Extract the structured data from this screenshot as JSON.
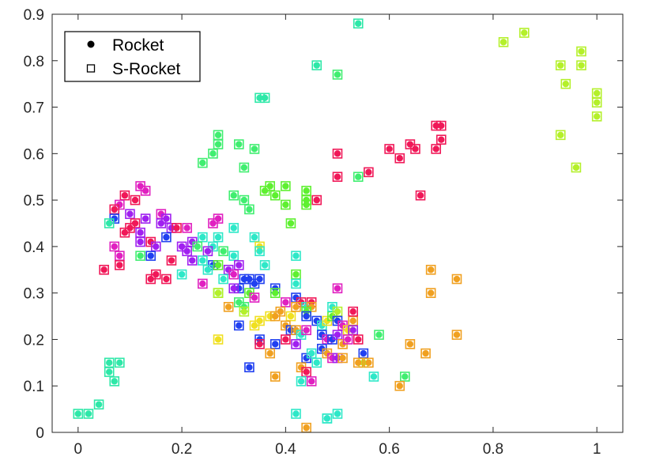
{
  "chart_data": {
    "type": "scatter",
    "title": "",
    "xlabel": "",
    "ylabel": "",
    "xlim": [
      -0.05,
      1.05
    ],
    "ylim": [
      0,
      0.9
    ],
    "xticks": [
      0,
      0.2,
      0.4,
      0.6,
      0.8,
      1
    ],
    "xtick_labels": [
      "0",
      "0.2",
      "0.4",
      "0.6",
      "0.8",
      "1"
    ],
    "yticks": [
      0,
      0.1,
      0.2,
      0.3,
      0.4,
      0.5,
      0.6,
      0.7,
      0.8,
      0.9
    ],
    "ytick_labels": [
      "0",
      "0.1",
      "0.2",
      "0.3",
      "0.4",
      "0.5",
      "0.6",
      "0.7",
      "0.8",
      "0.9"
    ],
    "grid": false,
    "legend": {
      "placement": "top-left",
      "entries": [
        {
          "label": "Rocket",
          "marker": "filled-circle"
        },
        {
          "label": "S-Rocket",
          "marker": "open-square"
        }
      ]
    },
    "encoding": "Each point is drawn twice: a filled circle for Rocket and an open square for S-Rocket, colored per item.",
    "points": [
      {
        "x": 0.86,
        "y": 0.86,
        "c": "#b4f02a"
      },
      {
        "x": 0.82,
        "y": 0.84,
        "c": "#b4f02a"
      },
      {
        "x": 0.97,
        "y": 0.82,
        "c": "#b4f02a"
      },
      {
        "x": 0.93,
        "y": 0.79,
        "c": "#b4f02a"
      },
      {
        "x": 0.97,
        "y": 0.79,
        "c": "#b4f02a"
      },
      {
        "x": 0.94,
        "y": 0.75,
        "c": "#b4f02a"
      },
      {
        "x": 1.0,
        "y": 0.73,
        "c": "#b4f02a"
      },
      {
        "x": 1.0,
        "y": 0.71,
        "c": "#b4f02a"
      },
      {
        "x": 1.0,
        "y": 0.68,
        "c": "#b4f02a"
      },
      {
        "x": 0.93,
        "y": 0.64,
        "c": "#b4f02a"
      },
      {
        "x": 0.96,
        "y": 0.57,
        "c": "#b4f02a"
      },
      {
        "x": 0.54,
        "y": 0.88,
        "c": "#2ee8a8"
      },
      {
        "x": 0.46,
        "y": 0.79,
        "c": "#2ee8a8"
      },
      {
        "x": 0.5,
        "y": 0.77,
        "c": "#40ee70"
      },
      {
        "x": 0.36,
        "y": 0.72,
        "c": "#2ee8a8"
      },
      {
        "x": 0.35,
        "y": 0.72,
        "c": "#2ee8a8"
      },
      {
        "x": 0.69,
        "y": 0.66,
        "c": "#f01858"
      },
      {
        "x": 0.7,
        "y": 0.66,
        "c": "#f01858"
      },
      {
        "x": 0.7,
        "y": 0.63,
        "c": "#f01858"
      },
      {
        "x": 0.64,
        "y": 0.62,
        "c": "#f01858"
      },
      {
        "x": 0.65,
        "y": 0.61,
        "c": "#f01858"
      },
      {
        "x": 0.69,
        "y": 0.61,
        "c": "#f01858"
      },
      {
        "x": 0.6,
        "y": 0.61,
        "c": "#f01858"
      },
      {
        "x": 0.62,
        "y": 0.59,
        "c": "#f01858"
      },
      {
        "x": 0.5,
        "y": 0.6,
        "c": "#f01858"
      },
      {
        "x": 0.5,
        "y": 0.55,
        "c": "#f01858"
      },
      {
        "x": 0.56,
        "y": 0.56,
        "c": "#f01858"
      },
      {
        "x": 0.66,
        "y": 0.51,
        "c": "#f01858"
      },
      {
        "x": 0.46,
        "y": 0.5,
        "c": "#f01858"
      },
      {
        "x": 0.27,
        "y": 0.64,
        "c": "#40ee70"
      },
      {
        "x": 0.27,
        "y": 0.62,
        "c": "#40ee70"
      },
      {
        "x": 0.31,
        "y": 0.62,
        "c": "#40ee70"
      },
      {
        "x": 0.34,
        "y": 0.61,
        "c": "#40ee70"
      },
      {
        "x": 0.26,
        "y": 0.6,
        "c": "#40ee70"
      },
      {
        "x": 0.24,
        "y": 0.58,
        "c": "#40ee70"
      },
      {
        "x": 0.32,
        "y": 0.57,
        "c": "#40ee70"
      },
      {
        "x": 0.54,
        "y": 0.55,
        "c": "#40ee70"
      },
      {
        "x": 0.37,
        "y": 0.53,
        "c": "#5ef030"
      },
      {
        "x": 0.36,
        "y": 0.52,
        "c": "#5ef030"
      },
      {
        "x": 0.4,
        "y": 0.53,
        "c": "#5ef030"
      },
      {
        "x": 0.44,
        "y": 0.52,
        "c": "#5ef030"
      },
      {
        "x": 0.3,
        "y": 0.51,
        "c": "#40ee70"
      },
      {
        "x": 0.32,
        "y": 0.5,
        "c": "#40ee70"
      },
      {
        "x": 0.38,
        "y": 0.51,
        "c": "#5ef030"
      },
      {
        "x": 0.4,
        "y": 0.49,
        "c": "#5ef030"
      },
      {
        "x": 0.44,
        "y": 0.5,
        "c": "#5ef030"
      },
      {
        "x": 0.44,
        "y": 0.49,
        "c": "#5ef030"
      },
      {
        "x": 0.33,
        "y": 0.48,
        "c": "#40ee70"
      },
      {
        "x": 0.41,
        "y": 0.45,
        "c": "#5ef030"
      },
      {
        "x": 0.09,
        "y": 0.51,
        "c": "#f01858"
      },
      {
        "x": 0.12,
        "y": 0.53,
        "c": "#e020c0"
      },
      {
        "x": 0.13,
        "y": 0.52,
        "c": "#e020c0"
      },
      {
        "x": 0.11,
        "y": 0.5,
        "c": "#f01858"
      },
      {
        "x": 0.08,
        "y": 0.49,
        "c": "#e020c0"
      },
      {
        "x": 0.07,
        "y": 0.48,
        "c": "#f01858"
      },
      {
        "x": 0.1,
        "y": 0.47,
        "c": "#a020f0"
      },
      {
        "x": 0.13,
        "y": 0.46,
        "c": "#a020f0"
      },
      {
        "x": 0.07,
        "y": 0.46,
        "c": "#2040f0"
      },
      {
        "x": 0.06,
        "y": 0.45,
        "c": "#2ee8a8"
      },
      {
        "x": 0.11,
        "y": 0.45,
        "c": "#f01858"
      },
      {
        "x": 0.1,
        "y": 0.44,
        "c": "#f01858"
      },
      {
        "x": 0.12,
        "y": 0.43,
        "c": "#a020f0"
      },
      {
        "x": 0.09,
        "y": 0.43,
        "c": "#f01858"
      },
      {
        "x": 0.16,
        "y": 0.47,
        "c": "#e020c0"
      },
      {
        "x": 0.17,
        "y": 0.46,
        "c": "#a020f0"
      },
      {
        "x": 0.16,
        "y": 0.45,
        "c": "#a020f0"
      },
      {
        "x": 0.18,
        "y": 0.44,
        "c": "#a020f0"
      },
      {
        "x": 0.19,
        "y": 0.44,
        "c": "#f01858"
      },
      {
        "x": 0.21,
        "y": 0.44,
        "c": "#e020c0"
      },
      {
        "x": 0.17,
        "y": 0.42,
        "c": "#2040f0"
      },
      {
        "x": 0.12,
        "y": 0.41,
        "c": "#a020f0"
      },
      {
        "x": 0.14,
        "y": 0.41,
        "c": "#f01858"
      },
      {
        "x": 0.07,
        "y": 0.4,
        "c": "#e020c0"
      },
      {
        "x": 0.15,
        "y": 0.4,
        "c": "#a020f0"
      },
      {
        "x": 0.2,
        "y": 0.4,
        "c": "#a020f0"
      },
      {
        "x": 0.22,
        "y": 0.41,
        "c": "#a020f0"
      },
      {
        "x": 0.21,
        "y": 0.39,
        "c": "#a020f0"
      },
      {
        "x": 0.12,
        "y": 0.38,
        "c": "#40ee70"
      },
      {
        "x": 0.14,
        "y": 0.38,
        "c": "#2040f0"
      },
      {
        "x": 0.08,
        "y": 0.38,
        "c": "#e020c0"
      },
      {
        "x": 0.18,
        "y": 0.37,
        "c": "#f01858"
      },
      {
        "x": 0.22,
        "y": 0.37,
        "c": "#a020f0"
      },
      {
        "x": 0.08,
        "y": 0.36,
        "c": "#f01858"
      },
      {
        "x": 0.05,
        "y": 0.35,
        "c": "#f01858"
      },
      {
        "x": 0.15,
        "y": 0.34,
        "c": "#f01858"
      },
      {
        "x": 0.14,
        "y": 0.33,
        "c": "#f01858"
      },
      {
        "x": 0.17,
        "y": 0.33,
        "c": "#f01858"
      },
      {
        "x": 0.2,
        "y": 0.34,
        "c": "#2ee8c8"
      },
      {
        "x": 0.26,
        "y": 0.45,
        "c": "#e020c0"
      },
      {
        "x": 0.27,
        "y": 0.46,
        "c": "#e020c0"
      },
      {
        "x": 0.3,
        "y": 0.44,
        "c": "#2ee8c8"
      },
      {
        "x": 0.24,
        "y": 0.42,
        "c": "#2ee8c8"
      },
      {
        "x": 0.27,
        "y": 0.42,
        "c": "#2ee8c8"
      },
      {
        "x": 0.26,
        "y": 0.4,
        "c": "#2ee8c8"
      },
      {
        "x": 0.23,
        "y": 0.4,
        "c": "#40ee70"
      },
      {
        "x": 0.25,
        "y": 0.39,
        "c": "#a020f0"
      },
      {
        "x": 0.28,
        "y": 0.39,
        "c": "#40ee70"
      },
      {
        "x": 0.3,
        "y": 0.38,
        "c": "#2ee8c8"
      },
      {
        "x": 0.24,
        "y": 0.37,
        "c": "#2ee8c8"
      },
      {
        "x": 0.26,
        "y": 0.36,
        "c": "#2040f0"
      },
      {
        "x": 0.27,
        "y": 0.36,
        "c": "#5ef030"
      },
      {
        "x": 0.25,
        "y": 0.35,
        "c": "#2ee8c8"
      },
      {
        "x": 0.29,
        "y": 0.35,
        "c": "#a020f0"
      },
      {
        "x": 0.31,
        "y": 0.36,
        "c": "#a020f0"
      },
      {
        "x": 0.3,
        "y": 0.34,
        "c": "#e020c0"
      },
      {
        "x": 0.24,
        "y": 0.32,
        "c": "#e020c0"
      },
      {
        "x": 0.28,
        "y": 0.33,
        "c": "#2ee8c8"
      },
      {
        "x": 0.32,
        "y": 0.33,
        "c": "#2040f0"
      },
      {
        "x": 0.33,
        "y": 0.33,
        "c": "#2040f0"
      },
      {
        "x": 0.34,
        "y": 0.32,
        "c": "#2040f0"
      },
      {
        "x": 0.35,
        "y": 0.33,
        "c": "#2040f0"
      },
      {
        "x": 0.34,
        "y": 0.42,
        "c": "#2ee8c8"
      },
      {
        "x": 0.35,
        "y": 0.4,
        "c": "#f0e020"
      },
      {
        "x": 0.35,
        "y": 0.39,
        "c": "#2ee8c8"
      },
      {
        "x": 0.36,
        "y": 0.36,
        "c": "#2ee8c8"
      },
      {
        "x": 0.31,
        "y": 0.31,
        "c": "#2040f0"
      },
      {
        "x": 0.3,
        "y": 0.31,
        "c": "#a020f0"
      },
      {
        "x": 0.27,
        "y": 0.3,
        "c": "#5ef030"
      },
      {
        "x": 0.27,
        "y": 0.3,
        "c": "#b4f02a"
      },
      {
        "x": 0.33,
        "y": 0.3,
        "c": "#5ef030"
      },
      {
        "x": 0.34,
        "y": 0.29,
        "c": "#e020c0"
      },
      {
        "x": 0.31,
        "y": 0.28,
        "c": "#40ee70"
      },
      {
        "x": 0.29,
        "y": 0.27,
        "c": "#f0a020"
      },
      {
        "x": 0.32,
        "y": 0.27,
        "c": "#40ee70"
      },
      {
        "x": 0.32,
        "y": 0.26,
        "c": "#b4f02a"
      },
      {
        "x": 0.31,
        "y": 0.23,
        "c": "#2040f0"
      },
      {
        "x": 0.35,
        "y": 0.24,
        "c": "#f0e020"
      },
      {
        "x": 0.34,
        "y": 0.23,
        "c": "#f0e020"
      },
      {
        "x": 0.35,
        "y": 0.2,
        "c": "#2040f0"
      },
      {
        "x": 0.35,
        "y": 0.19,
        "c": "#f01858"
      },
      {
        "x": 0.27,
        "y": 0.2,
        "c": "#f0e020"
      },
      {
        "x": 0.33,
        "y": 0.14,
        "c": "#2040f0"
      },
      {
        "x": 0.38,
        "y": 0.31,
        "c": "#2040f0"
      },
      {
        "x": 0.38,
        "y": 0.3,
        "c": "#5ef030"
      },
      {
        "x": 0.4,
        "y": 0.28,
        "c": "#e020c0"
      },
      {
        "x": 0.39,
        "y": 0.26,
        "c": "#f0a020"
      },
      {
        "x": 0.37,
        "y": 0.25,
        "c": "#f0e020"
      },
      {
        "x": 0.38,
        "y": 0.25,
        "c": "#f0a020"
      },
      {
        "x": 0.41,
        "y": 0.25,
        "c": "#f0e020"
      },
      {
        "x": 0.4,
        "y": 0.23,
        "c": "#f0a020"
      },
      {
        "x": 0.42,
        "y": 0.38,
        "c": "#2ee8c8"
      },
      {
        "x": 0.42,
        "y": 0.34,
        "c": "#5ef030"
      },
      {
        "x": 0.42,
        "y": 0.32,
        "c": "#2ee8c8"
      },
      {
        "x": 0.42,
        "y": 0.29,
        "c": "#2040f0"
      },
      {
        "x": 0.43,
        "y": 0.28,
        "c": "#f01858"
      },
      {
        "x": 0.42,
        "y": 0.27,
        "c": "#f0a020"
      },
      {
        "x": 0.44,
        "y": 0.27,
        "c": "#2ee8c8"
      },
      {
        "x": 0.45,
        "y": 0.28,
        "c": "#f01858"
      },
      {
        "x": 0.45,
        "y": 0.27,
        "c": "#f0a020"
      },
      {
        "x": 0.44,
        "y": 0.26,
        "c": "#5ef030"
      },
      {
        "x": 0.44,
        "y": 0.25,
        "c": "#2040f0"
      },
      {
        "x": 0.41,
        "y": 0.22,
        "c": "#2040f0"
      },
      {
        "x": 0.42,
        "y": 0.22,
        "c": "#f0a020"
      },
      {
        "x": 0.43,
        "y": 0.21,
        "c": "#2ee8c8"
      },
      {
        "x": 0.44,
        "y": 0.22,
        "c": "#e020c0"
      },
      {
        "x": 0.38,
        "y": 0.19,
        "c": "#2040f0"
      },
      {
        "x": 0.4,
        "y": 0.2,
        "c": "#f01858"
      },
      {
        "x": 0.42,
        "y": 0.19,
        "c": "#a020f0"
      },
      {
        "x": 0.37,
        "y": 0.17,
        "c": "#f0a020"
      },
      {
        "x": 0.44,
        "y": 0.16,
        "c": "#2040f0"
      },
      {
        "x": 0.45,
        "y": 0.17,
        "c": "#2ee8c8"
      },
      {
        "x": 0.43,
        "y": 0.14,
        "c": "#f0a020"
      },
      {
        "x": 0.44,
        "y": 0.13,
        "c": "#f01858"
      },
      {
        "x": 0.38,
        "y": 0.12,
        "c": "#f0a020"
      },
      {
        "x": 0.43,
        "y": 0.11,
        "c": "#2ee8c8"
      },
      {
        "x": 0.45,
        "y": 0.11,
        "c": "#e020c0"
      },
      {
        "x": 0.42,
        "y": 0.04,
        "c": "#2ee8c8"
      },
      {
        "x": 0.44,
        "y": 0.01,
        "c": "#f0a020"
      },
      {
        "x": 0.46,
        "y": 0.24,
        "c": "#2040f0"
      },
      {
        "x": 0.47,
        "y": 0.23,
        "c": "#2ee8c8"
      },
      {
        "x": 0.48,
        "y": 0.24,
        "c": "#f0e020"
      },
      {
        "x": 0.49,
        "y": 0.25,
        "c": "#5ef030"
      },
      {
        "x": 0.49,
        "y": 0.27,
        "c": "#2ee8c8"
      },
      {
        "x": 0.5,
        "y": 0.26,
        "c": "#b4f02a"
      },
      {
        "x": 0.5,
        "y": 0.24,
        "c": "#2040f0"
      },
      {
        "x": 0.51,
        "y": 0.23,
        "c": "#e020c0"
      },
      {
        "x": 0.52,
        "y": 0.22,
        "c": "#f0e020"
      },
      {
        "x": 0.53,
        "y": 0.24,
        "c": "#f0a020"
      },
      {
        "x": 0.53,
        "y": 0.26,
        "c": "#f01858"
      },
      {
        "x": 0.53,
        "y": 0.22,
        "c": "#a020f0"
      },
      {
        "x": 0.47,
        "y": 0.21,
        "c": "#2040f0"
      },
      {
        "x": 0.48,
        "y": 0.2,
        "c": "#e020c0"
      },
      {
        "x": 0.49,
        "y": 0.2,
        "c": "#2040f0"
      },
      {
        "x": 0.5,
        "y": 0.21,
        "c": "#a020f0"
      },
      {
        "x": 0.51,
        "y": 0.19,
        "c": "#f0a020"
      },
      {
        "x": 0.52,
        "y": 0.2,
        "c": "#e020c0"
      },
      {
        "x": 0.54,
        "y": 0.2,
        "c": "#f01858"
      },
      {
        "x": 0.47,
        "y": 0.18,
        "c": "#2040f0"
      },
      {
        "x": 0.48,
        "y": 0.17,
        "c": "#f0a020"
      },
      {
        "x": 0.49,
        "y": 0.16,
        "c": "#e020c0"
      },
      {
        "x": 0.5,
        "y": 0.16,
        "c": "#a020f0"
      },
      {
        "x": 0.51,
        "y": 0.16,
        "c": "#f0a020"
      },
      {
        "x": 0.46,
        "y": 0.15,
        "c": "#2ee8c8"
      },
      {
        "x": 0.55,
        "y": 0.17,
        "c": "#2040f0"
      },
      {
        "x": 0.55,
        "y": 0.15,
        "c": "#b4f02a"
      },
      {
        "x": 0.54,
        "y": 0.15,
        "c": "#f0a020"
      },
      {
        "x": 0.56,
        "y": 0.15,
        "c": "#f0a020"
      },
      {
        "x": 0.58,
        "y": 0.21,
        "c": "#40ee70"
      },
      {
        "x": 0.57,
        "y": 0.12,
        "c": "#2ee8c8"
      },
      {
        "x": 0.5,
        "y": 0.31,
        "c": "#e020c0"
      },
      {
        "x": 0.48,
        "y": 0.03,
        "c": "#2ee8c8"
      },
      {
        "x": 0.48,
        "y": 0.03,
        "c": "#2ee8c8"
      },
      {
        "x": 0.5,
        "y": 0.04,
        "c": "#2ee8c8"
      },
      {
        "x": 0.68,
        "y": 0.35,
        "c": "#f0a020"
      },
      {
        "x": 0.73,
        "y": 0.33,
        "c": "#f0a020"
      },
      {
        "x": 0.68,
        "y": 0.3,
        "c": "#f0a020"
      },
      {
        "x": 0.73,
        "y": 0.21,
        "c": "#f0a020"
      },
      {
        "x": 0.64,
        "y": 0.19,
        "c": "#f0a020"
      },
      {
        "x": 0.67,
        "y": 0.17,
        "c": "#f0a020"
      },
      {
        "x": 0.63,
        "y": 0.12,
        "c": "#40ee70"
      },
      {
        "x": 0.62,
        "y": 0.1,
        "c": "#f0a020"
      },
      {
        "x": 0.06,
        "y": 0.15,
        "c": "#2ee8a8"
      },
      {
        "x": 0.08,
        "y": 0.15,
        "c": "#2ee8a8"
      },
      {
        "x": 0.06,
        "y": 0.13,
        "c": "#2ee8a8"
      },
      {
        "x": 0.07,
        "y": 0.11,
        "c": "#2ee8a8"
      },
      {
        "x": 0.04,
        "y": 0.06,
        "c": "#2ee8a8"
      },
      {
        "x": 0.0,
        "y": 0.04,
        "c": "#2ee8a8"
      },
      {
        "x": 0.02,
        "y": 0.04,
        "c": "#2ee8a8"
      }
    ]
  }
}
